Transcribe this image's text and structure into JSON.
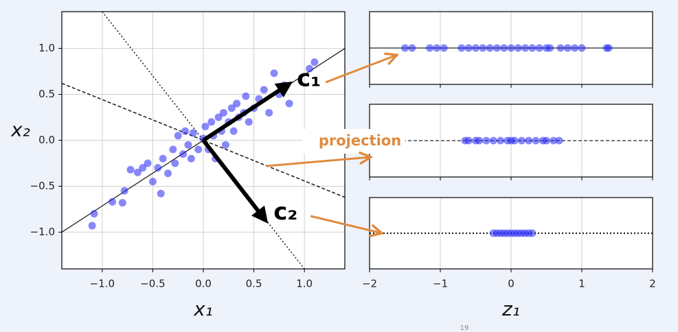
{
  "chart_data": [
    {
      "type": "scatter",
      "xlabel": "x₁",
      "ylabel": "x₂",
      "xlim": [
        -1.4,
        1.4
      ],
      "ylim": [
        -1.4,
        1.4
      ],
      "xticks": [
        {
          "value": -1,
          "label": "−1.0"
        },
        {
          "value": -0.5,
          "label": "−0.5"
        },
        {
          "value": 0,
          "label": "0.0"
        },
        {
          "value": 0.5,
          "label": "0.5"
        },
        {
          "value": 1,
          "label": "1.0"
        }
      ],
      "yticks": [
        {
          "value": -1,
          "label": "−1.0"
        },
        {
          "value": -0.5,
          "label": "−0.5"
        },
        {
          "value": 0,
          "label": "0.0"
        },
        {
          "value": 0.5,
          "label": "0.5"
        },
        {
          "value": 1,
          "label": "1.0"
        }
      ],
      "grid": true,
      "color": "#2727f5",
      "x": [
        -1.1,
        -1.08,
        -0.9,
        -0.8,
        -0.78,
        -0.72,
        -0.65,
        -0.6,
        -0.55,
        -0.5,
        -0.45,
        -0.42,
        -0.4,
        -0.35,
        -0.3,
        -0.28,
        -0.25,
        -0.2,
        -0.18,
        -0.15,
        -0.12,
        -0.1,
        -0.05,
        0,
        0.02,
        0.05,
        0.08,
        0.1,
        0.12,
        0.15,
        0.18,
        0.2,
        0.22,
        0.25,
        0.28,
        0.3,
        0.33,
        0.35,
        0.4,
        0.42,
        0.45,
        0.5,
        0.55,
        0.6,
        0.65,
        0.7,
        0.75,
        0.8,
        0.85,
        1.05,
        1.1
      ],
      "y": [
        -0.93,
        -0.8,
        -0.67,
        -0.68,
        -0.55,
        -0.32,
        -0.35,
        -0.3,
        -0.25,
        -0.45,
        -0.3,
        -0.58,
        -0.2,
        -0.36,
        -0.1,
        -0.25,
        0.05,
        -0.15,
        0.1,
        -0.05,
        -0.2,
        0.08,
        -0.1,
        0.02,
        0.15,
        -0.1,
        0.2,
        0.05,
        -0.2,
        0.25,
        0.1,
        0.3,
        -0.05,
        0.2,
        0.35,
        0.1,
        0.4,
        0.25,
        0.3,
        0.48,
        0.2,
        0.35,
        0.45,
        0.55,
        0.3,
        0.73,
        0.5,
        0.6,
        0.4,
        0.78,
        0.85
      ],
      "lines": [
        {
          "style": "solid",
          "x": [
            -1.4,
            1.4
          ],
          "y": [
            -1.0,
            1.0
          ]
        },
        {
          "style": "dashed",
          "x": [
            -1.4,
            1.4
          ],
          "y": [
            0.62,
            -0.62
          ]
        },
        {
          "style": "dotted",
          "x": [
            -1.0,
            1.0
          ],
          "y": [
            1.4,
            -1.4
          ]
        }
      ],
      "arrows": [
        {
          "label": "c₁",
          "x": [
            0,
            0.83
          ],
          "y": [
            0,
            0.6
          ]
        },
        {
          "label": "c₂",
          "x": [
            0,
            0.6
          ],
          "y": [
            0,
            -0.85
          ]
        }
      ]
    },
    {
      "type": "strip",
      "line_style": "solid",
      "xlim": [
        -2,
        2
      ],
      "xticks": [
        -2,
        -1,
        0,
        1,
        2
      ],
      "xtick_labels": false,
      "grid": true,
      "color": "#2727f5",
      "values": [
        -1.5,
        -1.4,
        -1.15,
        -1.05,
        -0.95,
        -0.7,
        -0.6,
        -0.5,
        -0.4,
        -0.3,
        -0.2,
        -0.1,
        0,
        0.1,
        0.2,
        0.3,
        0.4,
        0.5,
        0.55,
        0.7,
        0.8,
        0.9,
        1.0,
        1.35,
        1.38
      ]
    },
    {
      "type": "strip",
      "line_style": "dashed",
      "xlim": [
        -2,
        2
      ],
      "xticks": [
        -2,
        -1,
        0,
        1,
        2
      ],
      "xtick_labels": false,
      "grid": true,
      "color": "#2727f5",
      "values": [
        -0.65,
        -0.6,
        -0.5,
        -0.45,
        -0.35,
        -0.25,
        -0.15,
        -0.05,
        0,
        0.05,
        0.15,
        0.25,
        0.35,
        0.45,
        0.5,
        0.6,
        0.68
      ]
    },
    {
      "type": "strip",
      "line_style": "dotted",
      "xlabel": "z₁",
      "xlim": [
        -2,
        2
      ],
      "xticks": [
        {
          "value": -2,
          "label": "−2"
        },
        {
          "value": -1,
          "label": "−1"
        },
        {
          "value": 0,
          "label": "0"
        },
        {
          "value": 1,
          "label": "1"
        },
        {
          "value": 2,
          "label": "2"
        }
      ],
      "xtick_labels": true,
      "grid": true,
      "color": "#2727f5",
      "values": [
        -0.25,
        -0.2,
        -0.15,
        -0.1,
        -0.05,
        0,
        0.05,
        0.1,
        0.15,
        0.2,
        0.25,
        0.3
      ]
    }
  ],
  "annotation": "projection",
  "page_number": "19"
}
